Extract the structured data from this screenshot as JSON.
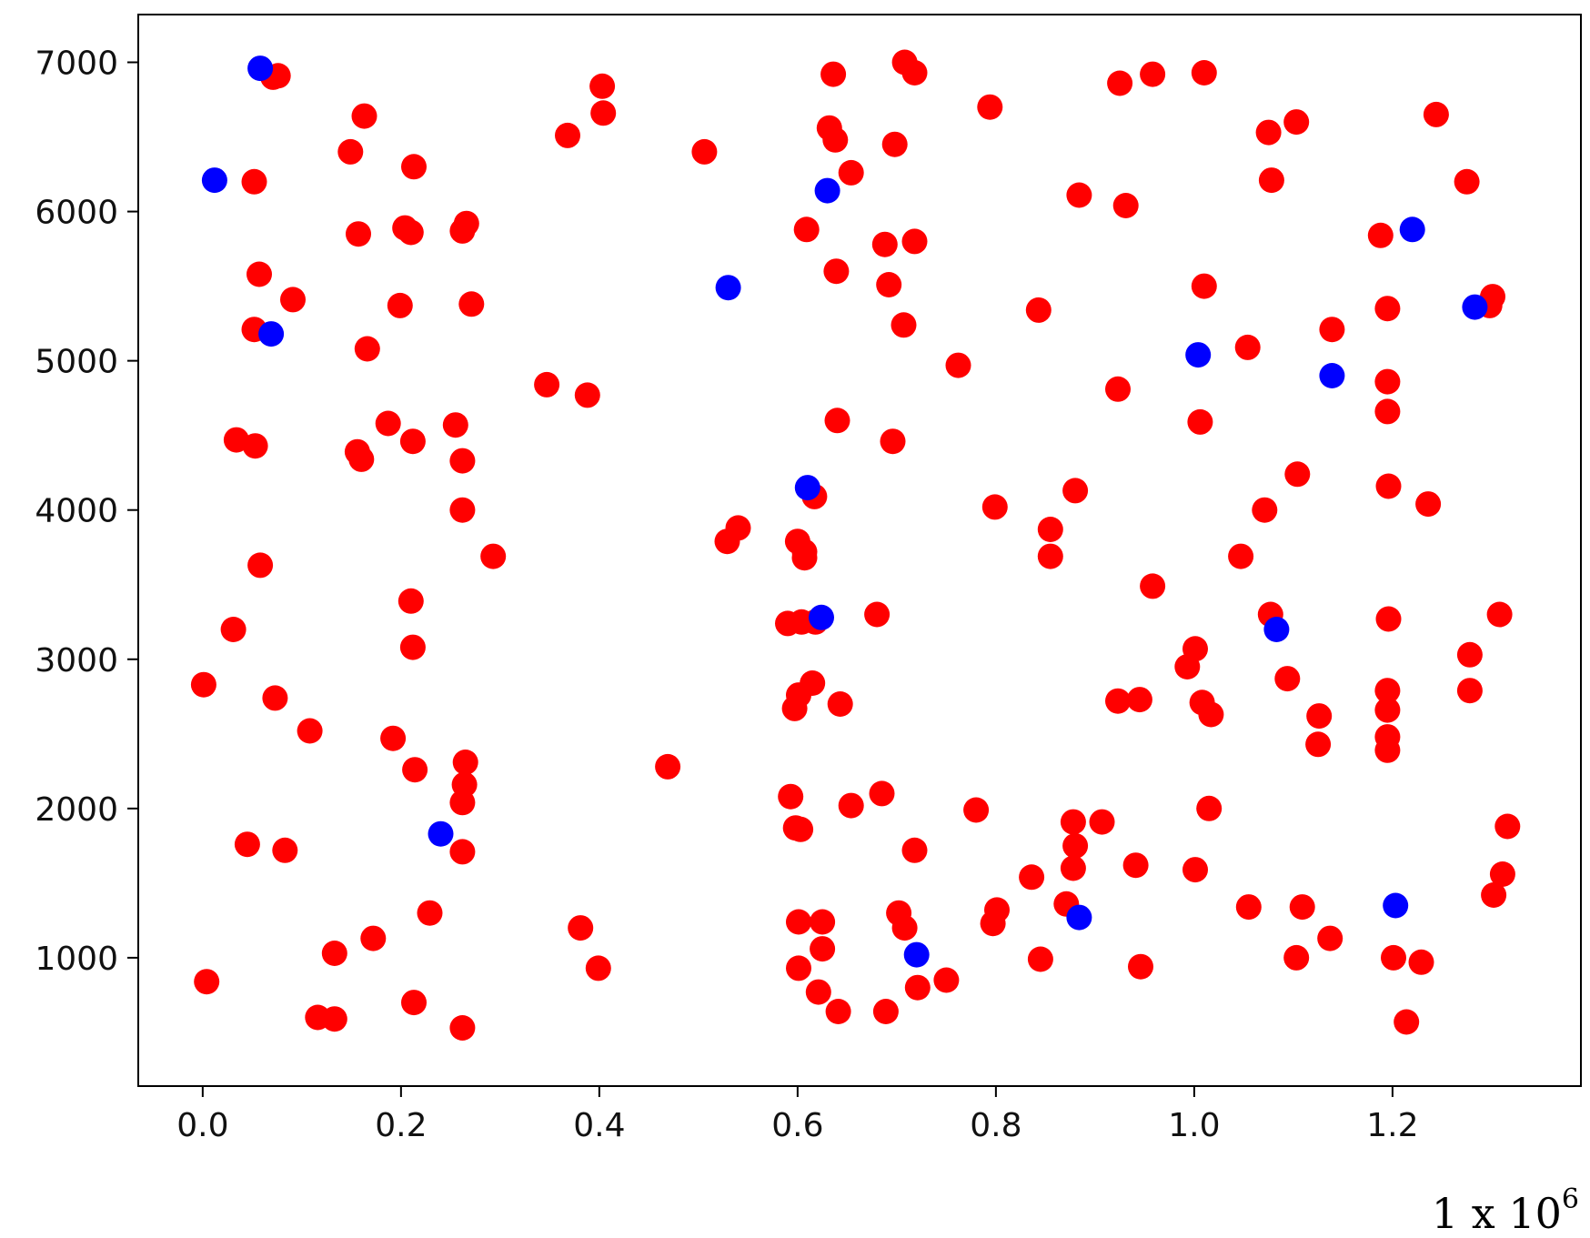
{
  "chart_data": {
    "type": "scatter",
    "title": "",
    "xlabel": "",
    "ylabel": "",
    "x_multiplier_label": "1 x 10⁶",
    "xlim": [
      -0.065,
      1.39
    ],
    "ylim": [
      140,
      7320
    ],
    "x_ticks": [
      0.0,
      0.2,
      0.4,
      0.6,
      0.8,
      1.0,
      1.2
    ],
    "x_tick_labels": [
      "0.0",
      "0.2",
      "0.4",
      "0.6",
      "0.8",
      "1.0",
      "1.2"
    ],
    "y_ticks": [
      1000,
      2000,
      3000,
      4000,
      5000,
      6000,
      7000
    ],
    "y_tick_labels": [
      "1000",
      "2000",
      "3000",
      "4000",
      "5000",
      "6000",
      "7000"
    ],
    "grid": false,
    "legend": "none",
    "series": [
      {
        "color": "#ff0000",
        "points": [
          [
            0.076,
            6910
          ],
          [
            0.071,
            6900
          ],
          [
            0.052,
            6200
          ],
          [
            0.057,
            5580
          ],
          [
            0.052,
            5210
          ],
          [
            0.091,
            5410
          ],
          [
            0.034,
            4470
          ],
          [
            0.053,
            4430
          ],
          [
            0.058,
            3630
          ],
          [
            0.031,
            3200
          ],
          [
            0.001,
            2830
          ],
          [
            0.073,
            2740
          ],
          [
            0.108,
            2520
          ],
          [
            0.045,
            1760
          ],
          [
            0.083,
            1720
          ],
          [
            0.004,
            840
          ],
          [
            0.163,
            6640
          ],
          [
            0.149,
            6400
          ],
          [
            0.157,
            5850
          ],
          [
            0.213,
            6300
          ],
          [
            0.204,
            5890
          ],
          [
            0.21,
            5860
          ],
          [
            0.199,
            5370
          ],
          [
            0.166,
            5080
          ],
          [
            0.187,
            4580
          ],
          [
            0.156,
            4390
          ],
          [
            0.16,
            4340
          ],
          [
            0.212,
            4460
          ],
          [
            0.21,
            3390
          ],
          [
            0.212,
            3080
          ],
          [
            0.192,
            2470
          ],
          [
            0.214,
            2260
          ],
          [
            0.133,
            1030
          ],
          [
            0.172,
            1130
          ],
          [
            0.229,
            1300
          ],
          [
            0.116,
            600
          ],
          [
            0.133,
            590
          ],
          [
            0.213,
            700
          ],
          [
            0.262,
            5870
          ],
          [
            0.266,
            5920
          ],
          [
            0.271,
            5380
          ],
          [
            0.255,
            4570
          ],
          [
            0.262,
            4330
          ],
          [
            0.262,
            4000
          ],
          [
            0.293,
            3690
          ],
          [
            0.265,
            2310
          ],
          [
            0.264,
            2160
          ],
          [
            0.262,
            2040
          ],
          [
            0.262,
            1710
          ],
          [
            0.262,
            530
          ],
          [
            0.368,
            6510
          ],
          [
            0.403,
            6840
          ],
          [
            0.404,
            6660
          ],
          [
            0.347,
            4840
          ],
          [
            0.388,
            4770
          ],
          [
            0.381,
            1200
          ],
          [
            0.399,
            930
          ],
          [
            0.469,
            2280
          ],
          [
            0.506,
            6400
          ],
          [
            0.54,
            3880
          ],
          [
            0.529,
            3790
          ],
          [
            0.636,
            6920
          ],
          [
            0.632,
            6560
          ],
          [
            0.638,
            6480
          ],
          [
            0.654,
            6260
          ],
          [
            0.609,
            5880
          ],
          [
            0.639,
            5600
          ],
          [
            0.64,
            4600
          ],
          [
            0.617,
            4090
          ],
          [
            0.6,
            3790
          ],
          [
            0.607,
            3720
          ],
          [
            0.607,
            3680
          ],
          [
            0.59,
            3240
          ],
          [
            0.604,
            3250
          ],
          [
            0.618,
            3250
          ],
          [
            0.615,
            2840
          ],
          [
            0.601,
            2760
          ],
          [
            0.597,
            2670
          ],
          [
            0.643,
            2700
          ],
          [
            0.593,
            2080
          ],
          [
            0.598,
            1870
          ],
          [
            0.603,
            1860
          ],
          [
            0.654,
            2020
          ],
          [
            0.601,
            1240
          ],
          [
            0.625,
            1240
          ],
          [
            0.625,
            1060
          ],
          [
            0.601,
            930
          ],
          [
            0.621,
            770
          ],
          [
            0.641,
            640
          ],
          [
            0.708,
            7000
          ],
          [
            0.718,
            6930
          ],
          [
            0.698,
            6450
          ],
          [
            0.688,
            5780
          ],
          [
            0.718,
            5800
          ],
          [
            0.692,
            5510
          ],
          [
            0.707,
            5240
          ],
          [
            0.762,
            4970
          ],
          [
            0.696,
            4460
          ],
          [
            0.68,
            3300
          ],
          [
            0.685,
            2100
          ],
          [
            0.718,
            1720
          ],
          [
            0.702,
            1300
          ],
          [
            0.708,
            1200
          ],
          [
            0.721,
            800
          ],
          [
            0.75,
            850
          ],
          [
            0.689,
            640
          ],
          [
            0.794,
            6700
          ],
          [
            0.799,
            4020
          ],
          [
            0.78,
            1990
          ],
          [
            0.797,
            1230
          ],
          [
            0.801,
            1320
          ],
          [
            0.843,
            5340
          ],
          [
            0.855,
            3870
          ],
          [
            0.855,
            3690
          ],
          [
            0.836,
            1540
          ],
          [
            0.845,
            990
          ],
          [
            0.884,
            6110
          ],
          [
            0.88,
            4130
          ],
          [
            0.878,
            1910
          ],
          [
            0.88,
            1750
          ],
          [
            0.878,
            1600
          ],
          [
            0.871,
            1360
          ],
          [
            0.907,
            1910
          ],
          [
            0.925,
            6860
          ],
          [
            0.958,
            6920
          ],
          [
            1.01,
            6930
          ],
          [
            0.931,
            6040
          ],
          [
            1.01,
            5500
          ],
          [
            0.923,
            4810
          ],
          [
            1.006,
            4590
          ],
          [
            0.958,
            3490
          ],
          [
            1.001,
            3070
          ],
          [
            0.993,
            2950
          ],
          [
            0.923,
            2720
          ],
          [
            0.945,
            2730
          ],
          [
            1.008,
            2710
          ],
          [
            1.017,
            2630
          ],
          [
            0.941,
            1620
          ],
          [
            1.001,
            1590
          ],
          [
            1.015,
            2000
          ],
          [
            0.946,
            940
          ],
          [
            1.075,
            6530
          ],
          [
            1.103,
            6600
          ],
          [
            1.078,
            6210
          ],
          [
            1.054,
            5090
          ],
          [
            1.071,
            4000
          ],
          [
            1.104,
            4240
          ],
          [
            1.047,
            3690
          ],
          [
            1.077,
            3300
          ],
          [
            1.094,
            2870
          ],
          [
            1.126,
            2620
          ],
          [
            1.125,
            2430
          ],
          [
            1.055,
            1340
          ],
          [
            1.109,
            1340
          ],
          [
            1.103,
            1000
          ],
          [
            1.137,
            1130
          ],
          [
            1.244,
            6650
          ],
          [
            1.275,
            6200
          ],
          [
            1.188,
            5840
          ],
          [
            1.195,
            5350
          ],
          [
            1.139,
            5210
          ],
          [
            1.195,
            4860
          ],
          [
            1.195,
            4660
          ],
          [
            1.196,
            4160
          ],
          [
            1.236,
            4040
          ],
          [
            1.196,
            3270
          ],
          [
            1.195,
            2790
          ],
          [
            1.195,
            2660
          ],
          [
            1.195,
            2480
          ],
          [
            1.195,
            2390
          ],
          [
            1.278,
            3030
          ],
          [
            1.278,
            2790
          ],
          [
            1.301,
            5430
          ],
          [
            1.298,
            5370
          ],
          [
            1.308,
            3300
          ],
          [
            1.316,
            1880
          ],
          [
            1.311,
            1560
          ],
          [
            1.302,
            1420
          ],
          [
            1.201,
            1000
          ],
          [
            1.229,
            970
          ],
          [
            1.214,
            570
          ]
        ]
      },
      {
        "color": "#0000ff",
        "points": [
          [
            0.058,
            6960
          ],
          [
            0.012,
            6210
          ],
          [
            0.069,
            5180
          ],
          [
            0.24,
            1830
          ],
          [
            0.53,
            5490
          ],
          [
            0.63,
            6140
          ],
          [
            0.61,
            4150
          ],
          [
            0.624,
            3280
          ],
          [
            0.72,
            1020
          ],
          [
            0.884,
            1270
          ],
          [
            1.004,
            5040
          ],
          [
            1.083,
            3200
          ],
          [
            1.139,
            4900
          ],
          [
            1.22,
            5880
          ],
          [
            1.283,
            5360
          ],
          [
            1.203,
            1350
          ]
        ]
      }
    ]
  }
}
